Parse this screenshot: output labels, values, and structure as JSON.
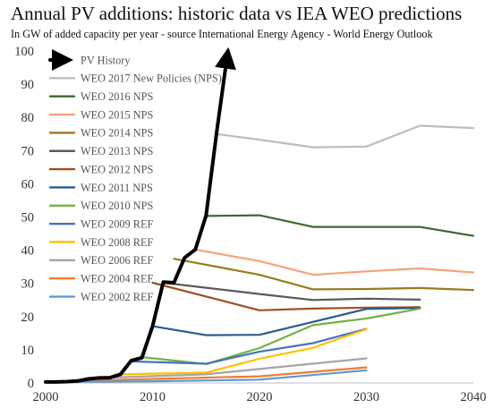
{
  "chart_data": {
    "type": "line",
    "title": "Annual PV additions: historic data vs IEA WEO predictions",
    "subtitle": "In GW of added capacity per year - source International Energy Agency - World Energy Outlook",
    "xlabel": "",
    "ylabel": "",
    "xlim": [
      2000,
      2040
    ],
    "ylim": [
      0,
      100
    ],
    "x_ticks": [
      "2000",
      "2010",
      "2020",
      "2030",
      "2040"
    ],
    "y_ticks": [
      "0",
      "10",
      "20",
      "30",
      "40",
      "50",
      "60",
      "70",
      "80",
      "90",
      "100"
    ],
    "grid": false,
    "legend_position": "top-left",
    "series": [
      {
        "name": "PV History",
        "color": "#000000",
        "arrow": true,
        "x": [
          2000,
          2001,
          2002,
          2003,
          2004,
          2005,
          2006,
          2007,
          2008,
          2009,
          2010,
          2011,
          2012,
          2013,
          2014,
          2015,
          2016,
          2017
        ],
        "y": [
          0.3,
          0.3,
          0.4,
          0.6,
          1.2,
          1.5,
          1.6,
          2.6,
          6.7,
          7.6,
          17.1,
          30.4,
          30.2,
          37.7,
          40.2,
          50.4,
          75.6,
          99
        ]
      },
      {
        "name": "WEO 2017 New Policies (NPS)",
        "color": "#bdbdbd",
        "x": [
          2016,
          2020,
          2025,
          2030,
          2035,
          2040
        ],
        "y": [
          75,
          73.3,
          71,
          71.2,
          77.5,
          76.8
        ]
      },
      {
        "name": "WEO 2016 NPS",
        "color": "#3b6b2a",
        "x": [
          2015,
          2020,
          2025,
          2030,
          2035,
          2040
        ],
        "y": [
          50.3,
          50.5,
          47,
          47,
          47,
          44.3
        ]
      },
      {
        "name": "WEO 2015 NPS",
        "color": "#f4a37b",
        "x": [
          2014,
          2020,
          2025,
          2030,
          2035,
          2040
        ],
        "y": [
          40.2,
          36.7,
          32.6,
          33.6,
          34.5,
          33.3
        ]
      },
      {
        "name": "WEO 2014 NPS",
        "color": "#997a1e",
        "x": [
          2012,
          2020,
          2025,
          2030,
          2035,
          2040
        ],
        "y": [
          37.4,
          32.6,
          28.2,
          28.3,
          28.6,
          28
        ]
      },
      {
        "name": "WEO 2013 NPS",
        "color": "#5a5a5a",
        "x": [
          2011,
          2020,
          2025,
          2030,
          2035
        ],
        "y": [
          30.2,
          26.8,
          25,
          25.4,
          25.1
        ]
      },
      {
        "name": "WEO 2012 NPS",
        "color": "#a0501e",
        "x": [
          2010,
          2020,
          2025,
          2030,
          2035
        ],
        "y": [
          30.2,
          21.9,
          22.4,
          22.7,
          22.8
        ]
      },
      {
        "name": "WEO 2011 NPS",
        "color": "#2a5b8c",
        "x": [
          2010,
          2015,
          2020,
          2030,
          2035
        ],
        "y": [
          17.1,
          14.4,
          14.5,
          22.3,
          22.6
        ]
      },
      {
        "name": "WEO 2010 NPS",
        "color": "#73b146",
        "x": [
          2009,
          2015,
          2020,
          2025,
          2030,
          2035
        ],
        "y": [
          7.8,
          5.7,
          10.5,
          17.4,
          19.4,
          22.4
        ]
      },
      {
        "name": "WEO 2009 REF",
        "color": "#4472c4",
        "x": [
          2008,
          2015,
          2020,
          2025,
          2030
        ],
        "y": [
          6.5,
          5.8,
          9.4,
          12,
          16.3
        ]
      },
      {
        "name": "WEO 2008 REF",
        "color": "#ffc000",
        "x": [
          2007,
          2015,
          2020,
          2025,
          2030
        ],
        "y": [
          2.6,
          3.1,
          7.3,
          10.6,
          16.2
        ]
      },
      {
        "name": "WEO 2006 REF",
        "color": "#a5a5a5",
        "x": [
          2005,
          2015,
          2020,
          2030
        ],
        "y": [
          1.5,
          2.6,
          4.2,
          7.4
        ]
      },
      {
        "name": "WEO 2004 REF",
        "color": "#ed7d31",
        "x": [
          2003,
          2010,
          2020,
          2030
        ],
        "y": [
          0.6,
          1.2,
          2,
          4.7
        ]
      },
      {
        "name": "WEO 2002 REF",
        "color": "#5b9bd5",
        "x": [
          2001,
          2010,
          2020,
          2030
        ],
        "y": [
          0.3,
          0.5,
          1,
          3.8
        ]
      }
    ]
  }
}
